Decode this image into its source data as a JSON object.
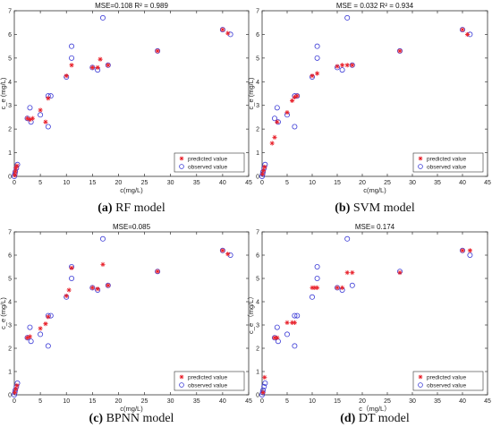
{
  "chart_data": [
    {
      "type": "scatter",
      "title": "MSE=0.108 R² = 0.989",
      "xlabel": "c(mg/L)",
      "ylabel": "c_e (mg/L)",
      "xlim": [
        0,
        45
      ],
      "ylim": [
        0,
        7
      ],
      "xticks": [
        "0",
        "5",
        "10",
        "15",
        "20",
        "25",
        "30",
        "35",
        "40",
        "45"
      ],
      "yticks": [
        "0",
        "1",
        "2",
        "3",
        "4",
        "5",
        "6",
        "7"
      ],
      "legend_position": "bottom-right",
      "caption_label": "(a)",
      "caption_text": " RF model",
      "series": [
        {
          "name": "predicted value",
          "marker": "star",
          "color": "#e8202a",
          "x": [
            0.1,
            0.2,
            0.3,
            0.5,
            2.5,
            3,
            3.5,
            5,
            6,
            6.5,
            10,
            11,
            15,
            16,
            16.5,
            18,
            27.5,
            40,
            41
          ],
          "y": [
            0.05,
            0.2,
            0.35,
            0.45,
            2.45,
            2.4,
            2.45,
            2.8,
            2.3,
            3.3,
            4.25,
            4.7,
            4.6,
            4.6,
            4.95,
            4.7,
            5.3,
            6.2,
            6.05
          ]
        },
        {
          "name": "observed value",
          "marker": "circle",
          "color": "#3b3bd6",
          "x": [
            0,
            0.1,
            0.2,
            0.4,
            0.6,
            2.5,
            3,
            3.2,
            5,
            6.5,
            6.5,
            7,
            10,
            11,
            11,
            15,
            16,
            17,
            18,
            27.5,
            40,
            41.5
          ],
          "y": [
            0,
            0.1,
            0.2,
            0.35,
            0.5,
            2.45,
            2.9,
            2.3,
            2.6,
            2.1,
            3.4,
            3.4,
            4.2,
            5.5,
            5,
            4.6,
            4.5,
            6.7,
            4.7,
            5.3,
            6.2,
            6
          ]
        }
      ]
    },
    {
      "type": "scatter",
      "title": "MSE = 0.032 R² = 0.934",
      "xlabel": "c(mg/L)",
      "ylabel": "c_e (mg/L)",
      "xlim": [
        0,
        45
      ],
      "ylim": [
        0,
        7
      ],
      "xticks": [
        "0",
        "5",
        "10",
        "15",
        "20",
        "25",
        "30",
        "35",
        "40",
        "45"
      ],
      "yticks": [
        "0",
        "1",
        "2",
        "3",
        "4",
        "5",
        "6",
        "7"
      ],
      "legend_position": "bottom-right",
      "caption_label": "(b)",
      "caption_text": " SVM model",
      "series": [
        {
          "name": "predicted value",
          "marker": "star",
          "color": "#e8202a",
          "x": [
            0.1,
            0.3,
            0.5,
            2,
            2.5,
            3,
            5,
            6,
            6.5,
            7,
            10,
            11,
            15,
            16,
            17,
            18,
            27.5,
            40,
            41
          ],
          "y": [
            0.1,
            0.25,
            0.4,
            1.4,
            1.65,
            2.3,
            2.7,
            3.2,
            3.35,
            3.4,
            4.25,
            4.35,
            4.65,
            4.7,
            4.7,
            4.7,
            5.3,
            6.2,
            6
          ]
        },
        {
          "name": "observed value",
          "marker": "circle",
          "color": "#3b3bd6",
          "x": [
            0,
            0.1,
            0.2,
            0.4,
            0.6,
            2.5,
            3,
            3.2,
            5,
            6.5,
            6.5,
            7,
            10,
            11,
            11,
            15,
            16,
            17,
            18,
            27.5,
            40,
            41.5
          ],
          "y": [
            0,
            0.1,
            0.2,
            0.35,
            0.5,
            2.45,
            2.9,
            2.3,
            2.6,
            2.1,
            3.4,
            3.4,
            4.2,
            5.5,
            5,
            4.6,
            4.5,
            6.7,
            4.7,
            5.3,
            6.2,
            6
          ]
        }
      ]
    },
    {
      "type": "scatter",
      "title": "MSE=0.085",
      "xlabel": "c(mg/L)",
      "ylabel": "c_e (mg/L)",
      "xlim": [
        0,
        45
      ],
      "ylim": [
        0,
        7
      ],
      "xticks": [
        "0",
        "5",
        "10",
        "15",
        "20",
        "25",
        "30",
        "35",
        "40",
        "45"
      ],
      "yticks": [
        "0",
        "1",
        "2",
        "3",
        "4",
        "5",
        "6",
        "7"
      ],
      "legend_position": "bottom-right",
      "caption_label": "(c)",
      "caption_text": " BPNN model",
      "series": [
        {
          "name": "predicted value",
          "marker": "star",
          "color": "#e8202a",
          "x": [
            0.1,
            0.3,
            0.5,
            2.5,
            3,
            5,
            6,
            6.5,
            10,
            10.5,
            11,
            15,
            16,
            17,
            18,
            27.5,
            40,
            41
          ],
          "y": [
            0.1,
            0.25,
            0.4,
            2.45,
            2.5,
            2.85,
            3.05,
            3.35,
            4.25,
            4.5,
            5.45,
            4.6,
            4.55,
            5.6,
            4.7,
            5.3,
            6.2,
            6.05
          ]
        },
        {
          "name": "observed value",
          "marker": "circle",
          "color": "#3b3bd6",
          "x": [
            0,
            0.1,
            0.2,
            0.4,
            0.6,
            2.5,
            3,
            3.2,
            5,
            6.5,
            6.5,
            7,
            10,
            11,
            11,
            15,
            16,
            17,
            18,
            27.5,
            40,
            41.5
          ],
          "y": [
            0,
            0.1,
            0.2,
            0.35,
            0.5,
            2.45,
            2.9,
            2.3,
            2.6,
            2.1,
            3.4,
            3.4,
            4.2,
            5.5,
            5,
            4.6,
            4.5,
            6.7,
            4.7,
            5.3,
            6.2,
            6
          ]
        }
      ]
    },
    {
      "type": "scatter",
      "title": "MSE= 0.174",
      "xlabel": "c（mg/L）",
      "ylabel": "c_e （mg/L）",
      "xlim": [
        0,
        45
      ],
      "ylim": [
        0,
        7
      ],
      "xticks": [
        "0",
        "5",
        "10",
        "15",
        "20",
        "25",
        "30",
        "35",
        "40",
        "45"
      ],
      "yticks": [
        "0",
        "1",
        "2",
        "3",
        "4",
        "5",
        "6",
        "7"
      ],
      "legend_position": "bottom-right",
      "caption_label": "(d)",
      "caption_text": " DT model",
      "series": [
        {
          "name": "predicted value",
          "marker": "star",
          "color": "#e8202a",
          "x": [
            0.2,
            0.5,
            2.5,
            3,
            5,
            6,
            6.5,
            10,
            10.5,
            11,
            15,
            16,
            17,
            18,
            27.5,
            40,
            41.5
          ],
          "y": [
            0.1,
            0.75,
            2.45,
            2.45,
            3.1,
            3.1,
            3.1,
            4.6,
            4.6,
            4.6,
            4.6,
            4.6,
            5.25,
            5.25,
            5.25,
            6.2,
            6.2
          ]
        },
        {
          "name": "observed value",
          "marker": "circle",
          "color": "#3b3bd6",
          "x": [
            0,
            0.1,
            0.2,
            0.4,
            0.6,
            2.5,
            3,
            3.2,
            5,
            6.5,
            6.5,
            7,
            10,
            11,
            11,
            15,
            16,
            17,
            18,
            27.5,
            40,
            41.5
          ],
          "y": [
            0,
            0.1,
            0.2,
            0.35,
            0.5,
            2.45,
            2.9,
            2.3,
            2.6,
            2.1,
            3.4,
            3.4,
            4.2,
            5.5,
            5,
            4.6,
            4.5,
            6.7,
            4.7,
            5.3,
            6.2,
            6
          ]
        }
      ]
    }
  ]
}
